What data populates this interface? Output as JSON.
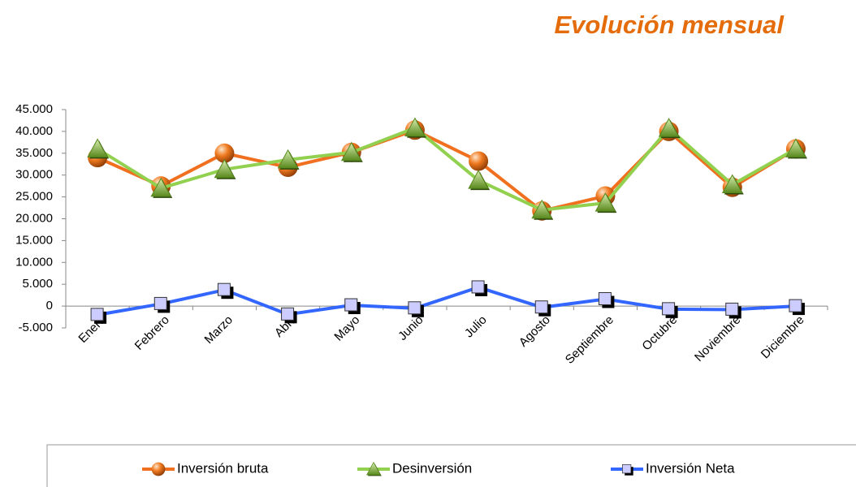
{
  "chart_data": {
    "type": "line",
    "title": "Evolución mensual",
    "categories": [
      "Enero",
      "Febrero",
      "Marzo",
      "Abril",
      "Mayo",
      "Junio",
      "Julio",
      "Agosto",
      "Septiembre",
      "Octubre",
      "Noviembre",
      "Diciembre"
    ],
    "series": [
      {
        "name": "Inversión bruta",
        "color": "#f07020",
        "marker": "circle",
        "values": [
          34000,
          27500,
          35000,
          31800,
          35200,
          40300,
          33200,
          21800,
          25200,
          40000,
          27200,
          36000
        ]
      },
      {
        "name": "Desinversión",
        "color": "#92d050",
        "marker": "triangle",
        "values": [
          36000,
          27000,
          31300,
          33500,
          35200,
          40800,
          28800,
          22000,
          23600,
          40700,
          27800,
          36000
        ]
      },
      {
        "name": "Inversión Neta",
        "color": "#3366ff",
        "marker": "square",
        "values": [
          -2000,
          500,
          3700,
          -1900,
          200,
          -500,
          4300,
          -300,
          1600,
          -700,
          -800,
          0
        ]
      }
    ],
    "ylim": [
      -5000,
      45000
    ],
    "yticks": [
      {
        "value": -5000,
        "label": "-5.000"
      },
      0,
      {
        "value": 5000,
        "label": "5.000"
      },
      {
        "value": 10000,
        "label": "10.000"
      },
      {
        "value": 15000,
        "label": "15.000"
      },
      {
        "value": 20000,
        "label": "20.000"
      },
      {
        "value": 25000,
        "label": "25.000"
      },
      {
        "value": 30000,
        "label": "30.000"
      },
      {
        "value": 35000,
        "label": "35.000"
      },
      {
        "value": 40000,
        "label": "40.000"
      },
      {
        "value": 45000,
        "label": "45.000"
      }
    ],
    "grid": false,
    "legend": "bottom"
  }
}
